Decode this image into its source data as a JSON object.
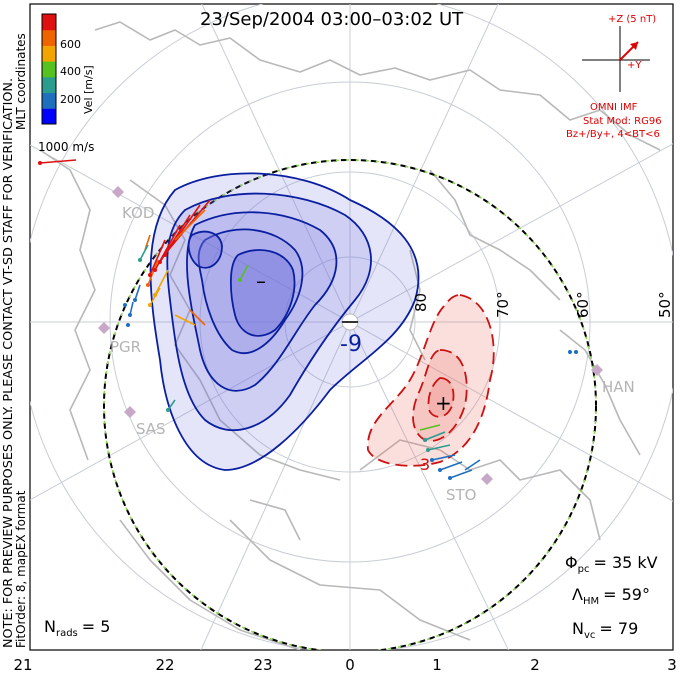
{
  "title": "23/Sep/2004 03:00–03:02 UT",
  "colorbar": {
    "label": "Vel [m/s]",
    "ticks": [
      "600",
      "400",
      "200"
    ],
    "colors": [
      "#0000ff",
      "#1f6fbf",
      "#2a9d8f",
      "#55c21f",
      "#f2a400",
      "#f06400",
      "#e01010"
    ]
  },
  "coords_label": "MLT coordinates",
  "scale_vector": "1000 m/s",
  "imf": {
    "z_label": "+Z (5 nT)",
    "y_label": "+Y",
    "source": "OMNI IMF",
    "model": "Stat Mod: RG96",
    "bins": "Bz+/By+, 4<BT<6",
    "color": "#e00000"
  },
  "lat_labels": [
    "80",
    "70°",
    "60°",
    "50°"
  ],
  "stations": [
    "KOD",
    "PGR",
    "SAS",
    "STO",
    "HAN"
  ],
  "contours": {
    "negative_label": "-9",
    "positive_label": "3",
    "min_symbol": "–",
    "max_symbol": "+"
  },
  "stats": {
    "phi_pc_sym": "Φ",
    "phi_pc_sub": "pc",
    "phi_pc": "= 35 kV",
    "lambda_sym": "Λ",
    "lambda_sub": "HM",
    "lambda_hm": "= 59°",
    "nvc_sym": "N",
    "nvc_sub": "vc",
    "n_vc": "= 79",
    "nrads_sym": "N",
    "nrads_sub": "rads",
    "n_rads": "= 5"
  },
  "side_note": "NOTE: FOR PREVIEW PURPOSES ONLY. PLEASE CONTACT VT-SD STAFF FOR VERIFICATION.",
  "fit_order": "FitOrder: 8,  mapEX format",
  "mlt_labels": [
    "21",
    "22",
    "23",
    "0",
    "1",
    "2",
    "3"
  ]
}
